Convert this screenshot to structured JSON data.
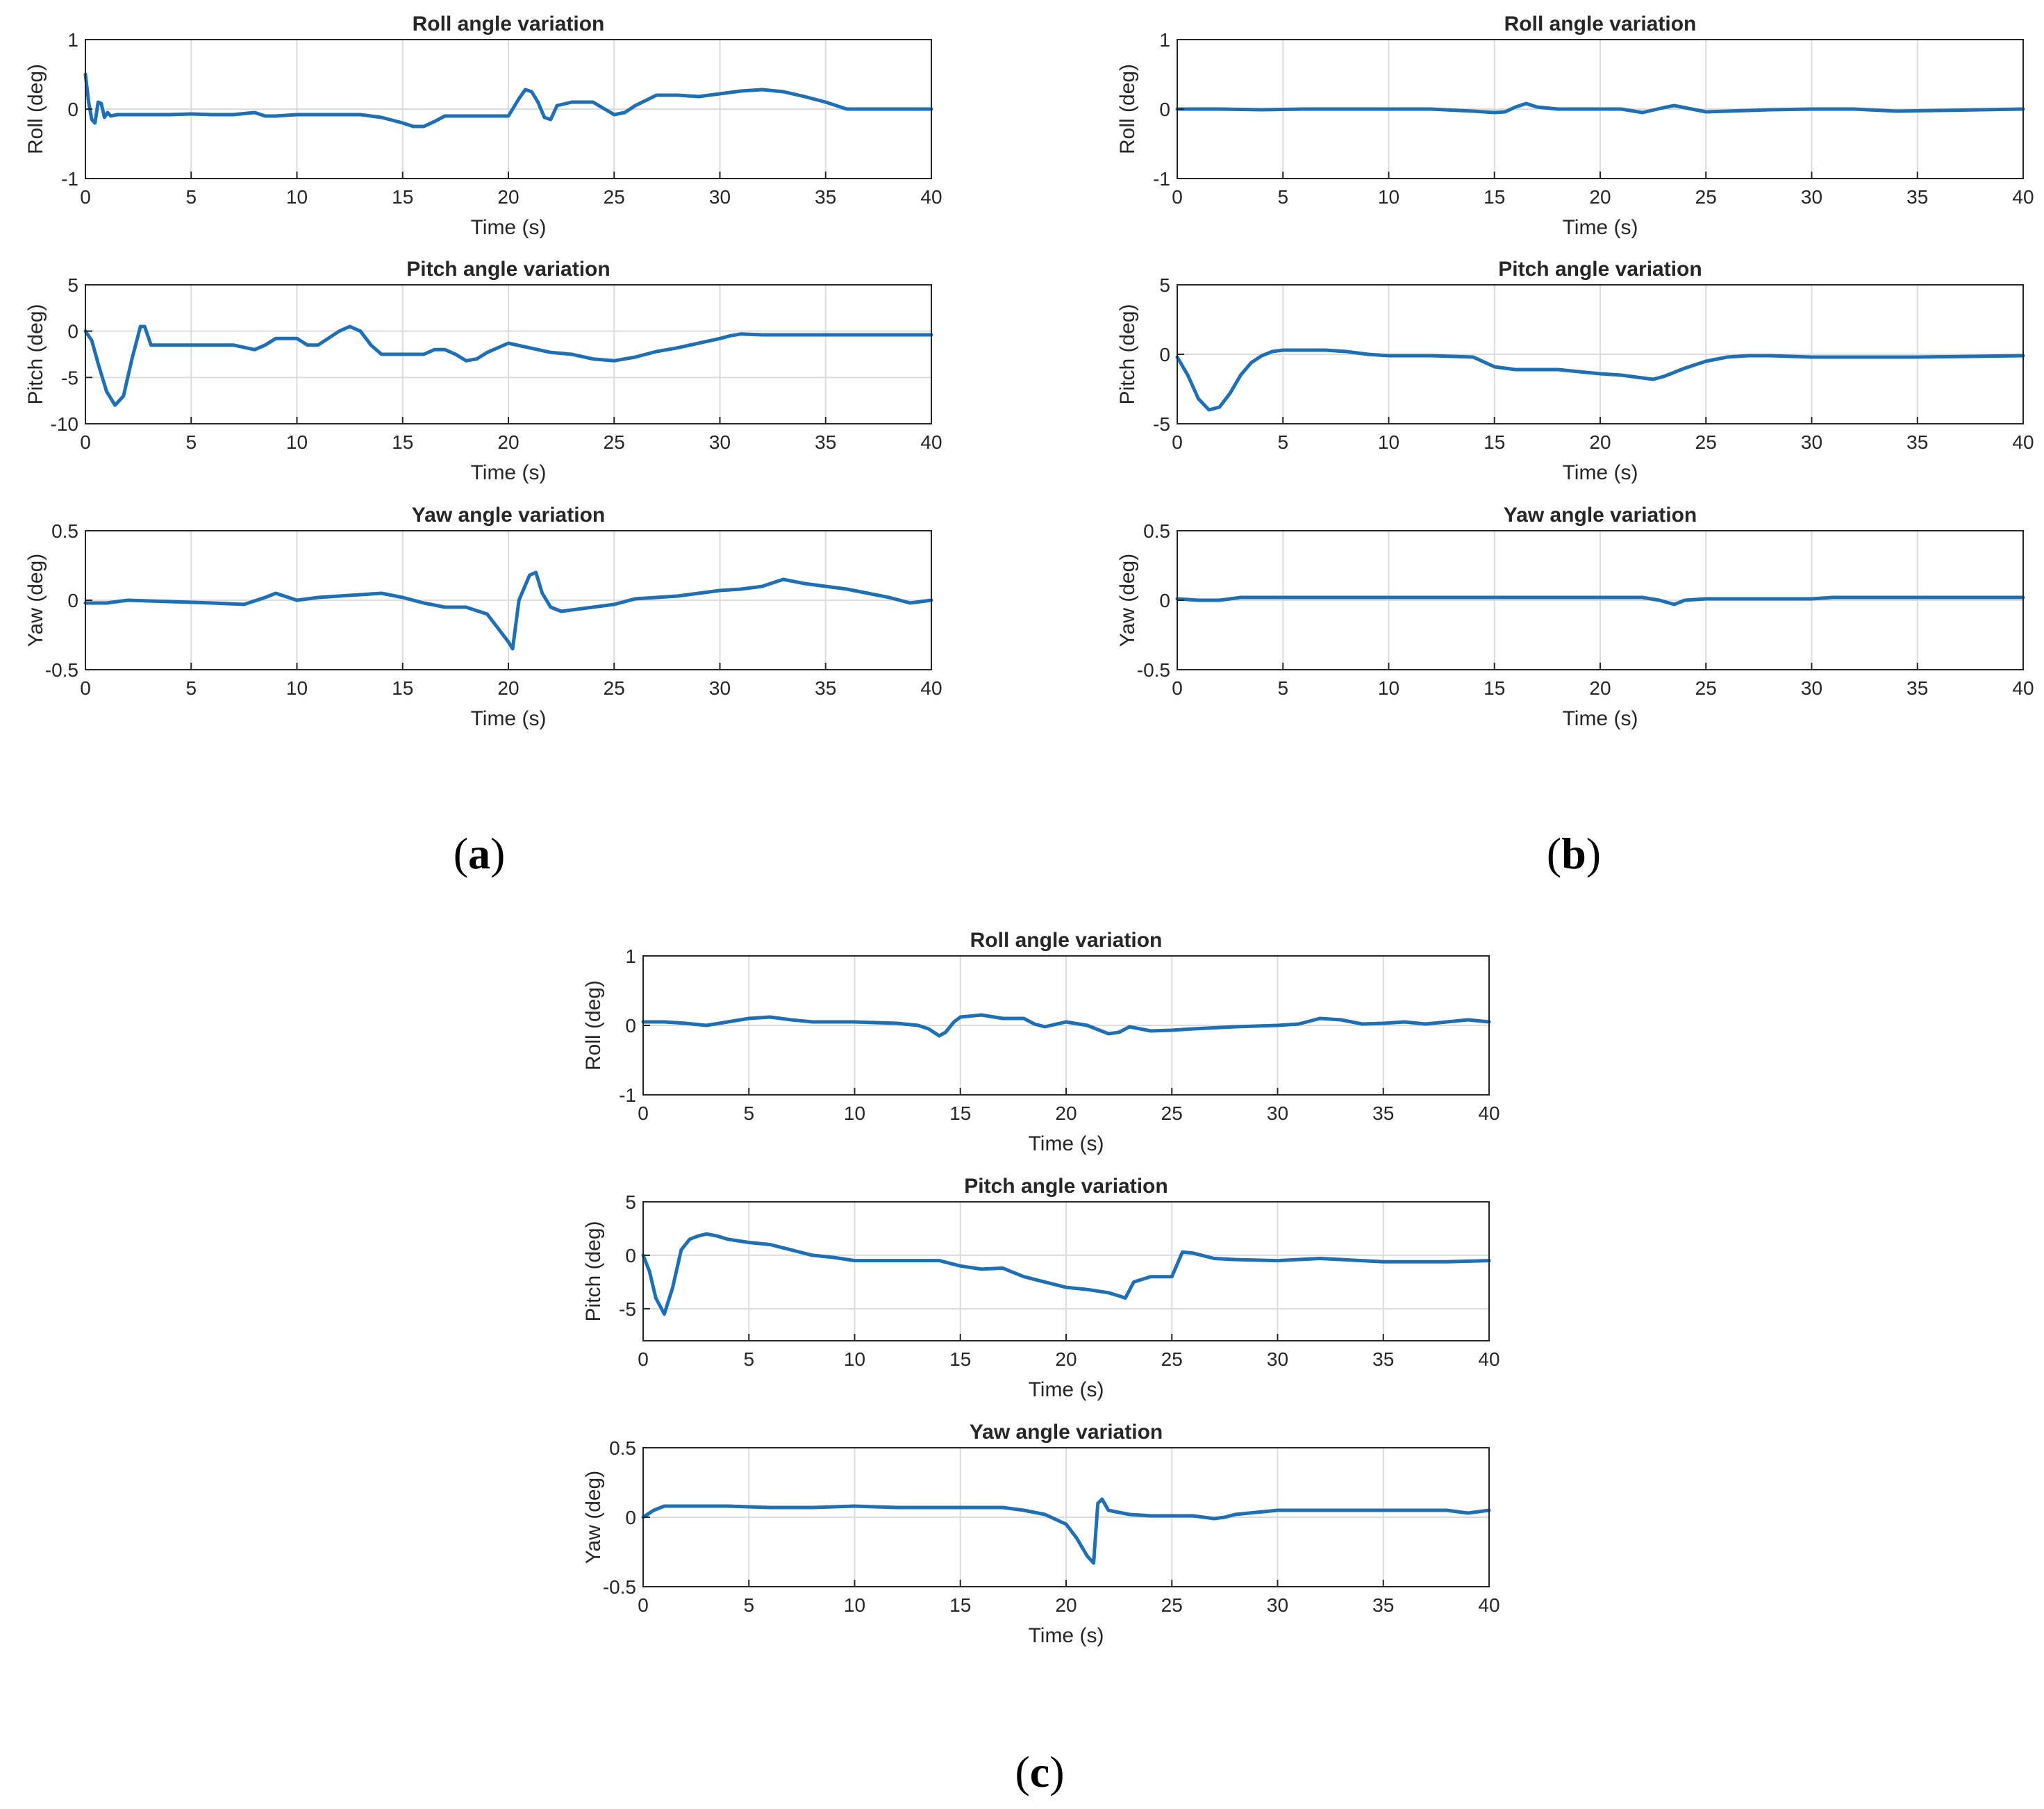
{
  "colors": {
    "series": "#1f6fb4",
    "axis": "#262626",
    "grid": "#dcdcdc"
  },
  "chart_data": [
    {
      "panel": "a",
      "caption_letter": "a",
      "plots": [
        {
          "type": "line",
          "title": "Roll angle variation",
          "xlabel": "Time (s)",
          "ylabel": "Roll (deg)",
          "xlim": [
            0,
            40
          ],
          "ylim": [
            -1,
            1
          ],
          "xticks": [
            0,
            5,
            10,
            15,
            20,
            25,
            30,
            35,
            40
          ],
          "yticks": [
            -1,
            0,
            1
          ],
          "x": [
            0,
            0.15,
            0.3,
            0.45,
            0.6,
            0.75,
            0.9,
            1.05,
            1.2,
            1.5,
            2,
            3,
            4,
            5,
            6,
            7,
            8,
            8.5,
            9,
            10,
            12,
            13,
            14,
            15,
            15.5,
            16,
            16.5,
            17,
            18,
            19,
            20,
            20.5,
            20.8,
            21.1,
            21.4,
            21.7,
            22,
            22.3,
            23,
            24,
            25,
            25.5,
            26,
            27,
            28,
            29,
            30,
            31,
            32,
            33,
            34,
            35,
            35.5,
            36,
            38,
            40
          ],
          "y": [
            0.5,
            0.1,
            -0.15,
            -0.2,
            0.1,
            0.08,
            -0.12,
            -0.05,
            -0.1,
            -0.08,
            -0.08,
            -0.08,
            -0.08,
            -0.07,
            -0.08,
            -0.08,
            -0.05,
            -0.1,
            -0.1,
            -0.08,
            -0.08,
            -0.08,
            -0.12,
            -0.2,
            -0.25,
            -0.25,
            -0.18,
            -0.1,
            -0.1,
            -0.1,
            -0.1,
            0.15,
            0.28,
            0.25,
            0.1,
            -0.12,
            -0.15,
            0.05,
            0.1,
            0.1,
            -0.08,
            -0.05,
            0.05,
            0.2,
            0.2,
            0.18,
            0.22,
            0.26,
            0.28,
            0.25,
            0.18,
            0.1,
            0.05,
            0,
            0,
            0
          ]
        },
        {
          "type": "line",
          "title": "Pitch angle variation",
          "xlabel": "Time (s)",
          "ylabel": "Pitch (deg)",
          "xlim": [
            0,
            40
          ],
          "ylim": [
            -10,
            5
          ],
          "xticks": [
            0,
            5,
            10,
            15,
            20,
            25,
            30,
            35,
            40
          ],
          "yticks": [
            -10,
            -5,
            0,
            5
          ],
          "x": [
            0,
            0.3,
            0.6,
            1,
            1.4,
            1.8,
            2.2,
            2.6,
            2.8,
            3.1,
            3.5,
            4,
            5,
            6,
            7,
            8,
            8.5,
            9,
            10,
            10.5,
            11,
            12,
            12.5,
            13,
            13.5,
            14,
            15,
            16,
            16.5,
            17,
            17.5,
            18,
            18.5,
            19,
            20,
            21,
            22,
            23,
            24,
            25,
            26,
            27,
            28,
            29,
            30,
            30.5,
            31,
            32,
            35,
            38,
            40
          ],
          "y": [
            0,
            -1,
            -3.5,
            -6.5,
            -8,
            -7,
            -3,
            0.5,
            0.5,
            -1.5,
            -1.5,
            -1.5,
            -1.5,
            -1.5,
            -1.5,
            -2,
            -1.5,
            -0.8,
            -0.8,
            -1.5,
            -1.5,
            0,
            0.5,
            0,
            -1.5,
            -2.5,
            -2.5,
            -2.5,
            -2,
            -2,
            -2.5,
            -3.2,
            -3,
            -2.3,
            -1.3,
            -1.8,
            -2.3,
            -2.5,
            -3,
            -3.2,
            -2.8,
            -2.2,
            -1.8,
            -1.3,
            -0.8,
            -0.5,
            -0.3,
            -0.4,
            -0.4,
            -0.4,
            -0.4
          ]
        },
        {
          "type": "line",
          "title": "Yaw angle variation",
          "xlabel": "Time (s)",
          "ylabel": "Yaw (deg)",
          "xlim": [
            0,
            40
          ],
          "ylim": [
            -0.5,
            0.5
          ],
          "xticks": [
            0,
            5,
            10,
            15,
            20,
            25,
            30,
            35,
            40
          ],
          "yticks": [
            -0.5,
            0,
            0.5
          ],
          "x": [
            0,
            1,
            2,
            4,
            6,
            7.5,
            8.5,
            9,
            10,
            11,
            12,
            13,
            14,
            15,
            16,
            17,
            18,
            19,
            19.5,
            20,
            20.2,
            20.5,
            21,
            21.3,
            21.6,
            22,
            22.5,
            23,
            24,
            25,
            26,
            27,
            28,
            29,
            30,
            31,
            32,
            33,
            34,
            35,
            36,
            37,
            38,
            39,
            40
          ],
          "y": [
            -0.02,
            -0.02,
            0,
            -0.01,
            -0.02,
            -0.03,
            0.02,
            0.05,
            0,
            0.02,
            0.03,
            0.04,
            0.05,
            0.02,
            -0.02,
            -0.05,
            -0.05,
            -0.1,
            -0.2,
            -0.3,
            -0.35,
            0,
            0.18,
            0.2,
            0.05,
            -0.05,
            -0.08,
            -0.07,
            -0.05,
            -0.03,
            0.01,
            0.02,
            0.03,
            0.05,
            0.07,
            0.08,
            0.1,
            0.15,
            0.12,
            0.1,
            0.08,
            0.05,
            0.02,
            -0.02,
            0
          ]
        }
      ]
    },
    {
      "panel": "b",
      "caption_letter": "b",
      "plots": [
        {
          "type": "line",
          "title": "Roll angle variation",
          "xlabel": "Time (s)",
          "ylabel": "Roll (deg)",
          "xlim": [
            0,
            40
          ],
          "ylim": [
            -1,
            1
          ],
          "xticks": [
            0,
            5,
            10,
            15,
            20,
            25,
            30,
            35,
            40
          ],
          "yticks": [
            -1,
            0,
            1
          ],
          "x": [
            0,
            2,
            4,
            6,
            8,
            10,
            12,
            14,
            15,
            15.5,
            16,
            16.5,
            17,
            18,
            19,
            20,
            21,
            22,
            23,
            23.5,
            24,
            25,
            26,
            28,
            30,
            32,
            34,
            36,
            38,
            40
          ],
          "y": [
            0,
            0,
            -0.01,
            0,
            0,
            0,
            0,
            -0.03,
            -0.05,
            -0.04,
            0.03,
            0.08,
            0.03,
            0,
            0,
            0,
            0,
            -0.05,
            0.02,
            0.05,
            0.02,
            -0.04,
            -0.03,
            -0.01,
            0,
            0,
            -0.03,
            -0.02,
            -0.01,
            0
          ]
        },
        {
          "type": "line",
          "title": "Pitch angle variation",
          "xlabel": "Time (s)",
          "ylabel": "Pitch (deg)",
          "xlim": [
            0,
            40
          ],
          "ylim": [
            -5,
            5
          ],
          "xticks": [
            0,
            5,
            10,
            15,
            20,
            25,
            30,
            35,
            40
          ],
          "yticks": [
            -5,
            0,
            5
          ],
          "x": [
            0,
            0.5,
            1,
            1.5,
            2,
            2.5,
            3,
            3.5,
            4,
            4.5,
            5,
            6,
            7,
            8,
            9,
            10,
            12,
            14,
            15,
            16,
            18,
            20,
            21,
            22,
            22.5,
            23,
            24,
            25,
            26,
            27,
            28,
            30,
            35,
            40
          ],
          "y": [
            -0.2,
            -1.5,
            -3.2,
            -4,
            -3.8,
            -2.8,
            -1.5,
            -0.6,
            -0.1,
            0.2,
            0.3,
            0.3,
            0.3,
            0.2,
            0,
            -0.1,
            -0.1,
            -0.2,
            -0.9,
            -1.1,
            -1.1,
            -1.4,
            -1.5,
            -1.7,
            -1.8,
            -1.6,
            -1,
            -0.5,
            -0.2,
            -0.1,
            -0.1,
            -0.2,
            -0.2,
            -0.1
          ]
        },
        {
          "type": "line",
          "title": "Yaw angle variation",
          "xlabel": "Time (s)",
          "ylabel": "Yaw (deg)",
          "xlim": [
            0,
            40
          ],
          "ylim": [
            -0.5,
            0.5
          ],
          "xticks": [
            0,
            5,
            10,
            15,
            20,
            25,
            30,
            35,
            40
          ],
          "yticks": [
            -0.5,
            0,
            0.5
          ],
          "x": [
            0,
            1,
            2,
            3,
            5,
            10,
            15,
            20,
            22,
            22.8,
            23.5,
            24,
            25,
            30,
            31,
            35,
            40
          ],
          "y": [
            0.01,
            0,
            0,
            0.02,
            0.02,
            0.02,
            0.02,
            0.02,
            0.02,
            0,
            -0.03,
            0,
            0.01,
            0.01,
            0.02,
            0.02,
            0.02
          ]
        }
      ]
    },
    {
      "panel": "c",
      "caption_letter": "c",
      "plots": [
        {
          "type": "line",
          "title": "Roll angle variation",
          "xlabel": "Time (s)",
          "ylabel": "Roll (deg)",
          "xlim": [
            0,
            40
          ],
          "ylim": [
            -1,
            1
          ],
          "xticks": [
            0,
            5,
            10,
            15,
            20,
            25,
            30,
            35,
            40
          ],
          "yticks": [
            -1,
            0,
            1
          ],
          "x": [
            0,
            1,
            2,
            3,
            4,
            5,
            6,
            7,
            8,
            10,
            12,
            13,
            13.5,
            14,
            14.3,
            14.7,
            15,
            16,
            17,
            18,
            18.5,
            19,
            20,
            21,
            22,
            22.5,
            23,
            23.5,
            24,
            25,
            26,
            28,
            30,
            31,
            32,
            33,
            34,
            35,
            36,
            37,
            38,
            39,
            40
          ],
          "y": [
            0.05,
            0.05,
            0.03,
            0,
            0.05,
            0.1,
            0.12,
            0.08,
            0.05,
            0.05,
            0.03,
            0,
            -0.05,
            -0.15,
            -0.1,
            0.05,
            0.12,
            0.15,
            0.1,
            0.1,
            0.02,
            -0.02,
            0.05,
            0,
            -0.12,
            -0.1,
            -0.02,
            -0.05,
            -0.08,
            -0.07,
            -0.05,
            -0.02,
            0,
            0.02,
            0.1,
            0.08,
            0.02,
            0.03,
            0.05,
            0.02,
            0.05,
            0.08,
            0.05
          ]
        },
        {
          "type": "line",
          "title": "Pitch angle variation",
          "xlabel": "Time (s)",
          "ylabel": "Pitch (deg)",
          "xlim": [
            0,
            40
          ],
          "ylim": [
            -8,
            5
          ],
          "xticks": [
            0,
            5,
            10,
            15,
            20,
            25,
            30,
            35,
            40
          ],
          "yticks": [
            -5,
            0,
            5
          ],
          "x": [
            0,
            0.3,
            0.6,
            1,
            1.4,
            1.8,
            2.2,
            2.6,
            3,
            3.5,
            4,
            5,
            6,
            7,
            8,
            9,
            10,
            11,
            12,
            13,
            14,
            15,
            16,
            17,
            18,
            19,
            20,
            21,
            22,
            22.5,
            22.8,
            23.2,
            24,
            24.5,
            25,
            25.5,
            26,
            27,
            28,
            30,
            32,
            35,
            38,
            40
          ],
          "y": [
            0,
            -1.5,
            -4,
            -5.5,
            -3,
            0.5,
            1.5,
            1.8,
            2,
            1.8,
            1.5,
            1.2,
            1,
            0.5,
            0,
            -0.2,
            -0.5,
            -0.5,
            -0.5,
            -0.5,
            -0.5,
            -1,
            -1.3,
            -1.2,
            -2,
            -2.5,
            -3,
            -3.2,
            -3.5,
            -3.8,
            -4,
            -2.5,
            -2,
            -2,
            -2,
            0.3,
            0.2,
            -0.3,
            -0.4,
            -0.5,
            -0.3,
            -0.6,
            -0.6,
            -0.5
          ]
        },
        {
          "type": "line",
          "title": "Yaw angle variation",
          "xlabel": "Time (s)",
          "ylabel": "Yaw (deg)",
          "xlim": [
            0,
            40
          ],
          "ylim": [
            -0.5,
            0.5
          ],
          "xticks": [
            0,
            5,
            10,
            15,
            20,
            25,
            30,
            35,
            40
          ],
          "yticks": [
            -0.5,
            0,
            0.5
          ],
          "x": [
            0,
            0.5,
            1,
            2,
            4,
            6,
            8,
            10,
            12,
            14,
            16,
            17,
            18,
            19,
            20,
            20.5,
            21,
            21.3,
            21.5,
            21.7,
            22,
            23,
            24,
            25,
            26,
            27,
            27.5,
            28,
            30,
            32,
            35,
            38,
            39,
            40
          ],
          "y": [
            0,
            0.05,
            0.08,
            0.08,
            0.08,
            0.07,
            0.07,
            0.08,
            0.07,
            0.07,
            0.07,
            0.07,
            0.05,
            0.02,
            -0.05,
            -0.15,
            -0.28,
            -0.33,
            0.1,
            0.13,
            0.05,
            0.02,
            0.01,
            0.01,
            0.01,
            -0.01,
            0,
            0.02,
            0.05,
            0.05,
            0.05,
            0.05,
            0.03,
            0.05
          ]
        }
      ]
    }
  ]
}
